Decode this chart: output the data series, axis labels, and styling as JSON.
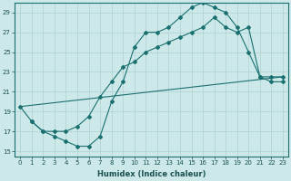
{
  "xlabel": "Humidex (Indice chaleur)",
  "ylabel": "",
  "bg_color": "#cce8e8",
  "grid_color": "#b0d0d0",
  "line_color": "#1a7070",
  "xlim": [
    -0.5,
    23.5
  ],
  "ylim": [
    14.5,
    30.0
  ],
  "yticks": [
    15,
    17,
    19,
    21,
    23,
    25,
    27,
    29
  ],
  "xticks": [
    0,
    1,
    2,
    3,
    4,
    5,
    6,
    7,
    8,
    9,
    10,
    11,
    12,
    13,
    14,
    15,
    16,
    17,
    18,
    19,
    20,
    21,
    22,
    23
  ],
  "line1_x": [
    0,
    1,
    2,
    3,
    4,
    5,
    6,
    7,
    8,
    9,
    10,
    11,
    12,
    13,
    14,
    15,
    16,
    17,
    18,
    19,
    20,
    21,
    22,
    23
  ],
  "line1_y": [
    19.5,
    18.0,
    17.0,
    16.5,
    16.0,
    15.5,
    15.5,
    16.5,
    20.0,
    22.0,
    25.5,
    27.0,
    27.0,
    27.5,
    28.5,
    29.5,
    30.0,
    29.5,
    29.0,
    27.5,
    25.0,
    22.5,
    22.5,
    22.5
  ],
  "line2_x": [
    1,
    2,
    3,
    4,
    5,
    6,
    7,
    8,
    9,
    10,
    11,
    12,
    13,
    14,
    15,
    16,
    17,
    18,
    19,
    20,
    21,
    22,
    23
  ],
  "line2_y": [
    18.0,
    17.0,
    17.0,
    17.0,
    17.5,
    18.5,
    20.5,
    22.0,
    23.5,
    24.0,
    25.0,
    25.5,
    26.0,
    26.5,
    27.0,
    27.5,
    28.5,
    27.5,
    27.0,
    27.5,
    22.5,
    22.0,
    22.0
  ],
  "line3_x": [
    0,
    23
  ],
  "line3_y": [
    19.5,
    22.5
  ]
}
